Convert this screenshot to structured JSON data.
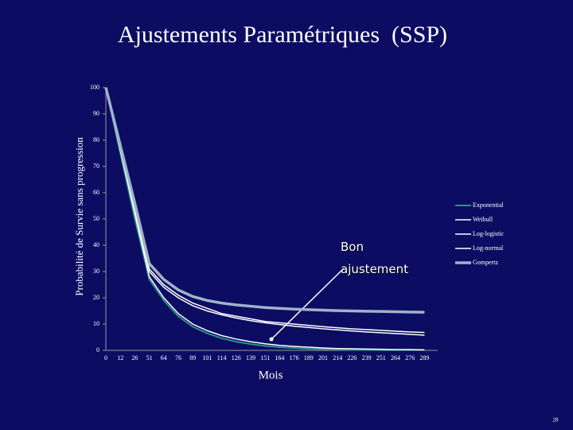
{
  "chart_data": {
    "type": "line",
    "title": "Ajustements Paramétriques  (SSP)",
    "y_label": "Probabilité de Survie sans progression",
    "x_label": "Mois",
    "annotation": "Bon ajustement",
    "page_number": 28,
    "categories": [
      "0",
      "12",
      "26",
      "51",
      "64",
      "76",
      "89",
      "101",
      "114",
      "126",
      "139",
      "151",
      "164",
      "176",
      "189",
      "201",
      "214",
      "226",
      "239",
      "251",
      "264",
      "276",
      "289"
    ],
    "ylim": [
      0,
      100
    ],
    "yticks": [
      0,
      10,
      20,
      30,
      40,
      50,
      60,
      70,
      80,
      90,
      100
    ],
    "series": [
      {
        "name": "Exponential",
        "color": "#2a8f8a",
        "values": [
          100,
          75,
          50,
          27,
          19,
          13,
          9,
          6.5,
          4.6,
          3.3,
          2.4,
          1.7,
          1.2,
          0.9,
          0.6,
          0.5,
          0.3,
          0.2,
          0.2,
          0.1,
          0.1,
          0.1,
          0.1
        ]
      },
      {
        "name": "Weibull",
        "color": "#ffffff",
        "values": [
          100,
          76,
          52,
          28,
          20,
          14,
          10,
          7.5,
          5.6,
          4.3,
          3.3,
          2.5,
          1.9,
          1.5,
          1.2,
          0.9,
          0.7,
          0.6,
          0.5,
          0.4,
          0.3,
          0.3,
          0.2
        ]
      },
      {
        "name": "Log-logistic",
        "color": "#ffffff",
        "values": [
          100,
          77,
          54,
          31,
          25,
          21,
          18,
          16,
          14,
          13,
          12,
          11,
          10.5,
          10,
          9.5,
          9,
          8.6,
          8.2,
          7.9,
          7.6,
          7.3,
          7,
          6.8
        ]
      },
      {
        "name": "Log-normal",
        "color": "#ffffff",
        "values": [
          100,
          77,
          54,
          30,
          24,
          20,
          17,
          15,
          13.5,
          12.3,
          11.3,
          10.5,
          9.8,
          9.2,
          8.7,
          8.2,
          7.8,
          7.4,
          7,
          6.7,
          6.4,
          6.1,
          5.8
        ]
      },
      {
        "name": "Gompertz",
        "color": "#9fb3c8",
        "values": [
          100,
          78,
          56,
          33,
          27,
          23,
          20.5,
          19,
          18,
          17.3,
          16.8,
          16.3,
          16,
          15.7,
          15.5,
          15.3,
          15.1,
          15,
          14.9,
          14.8,
          14.7,
          14.6,
          14.5
        ]
      }
    ]
  }
}
